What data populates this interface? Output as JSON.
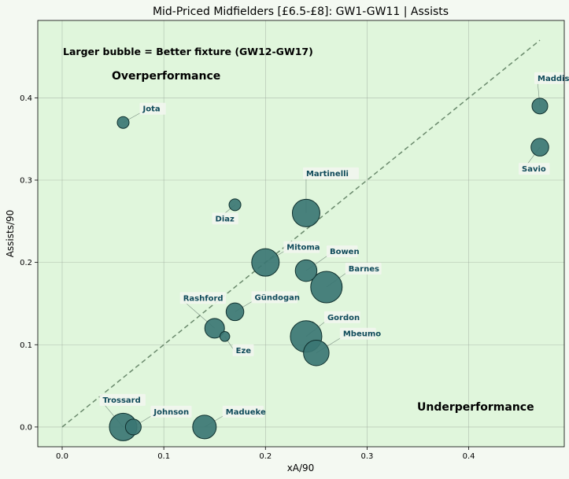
{
  "chart_data": {
    "type": "scatter",
    "title": "Mid-Priced Midfielders [£6.5-£8]: GW1-GW11 | Assists",
    "xlabel": "xA/90",
    "ylabel": "Assists/90",
    "xlim": [
      -0.024,
      0.494
    ],
    "ylim": [
      -0.024,
      0.494
    ],
    "xticks": [
      "0.0",
      "0.1",
      "0.2",
      "0.3",
      "0.4"
    ],
    "yticks": [
      "0.0",
      "0.1",
      "0.2",
      "0.3",
      "0.4"
    ],
    "grid": true,
    "note": "Larger bubble = Better fixture (GW12-GW17)",
    "zone_labels": {
      "over": "Overperformance",
      "under": "Underperformance"
    },
    "reference_line": {
      "from": [
        0,
        0
      ],
      "to": [
        0.47,
        0.47
      ],
      "style": "dashed"
    },
    "colors": {
      "plot_bg": "#e0f6dc",
      "page_bg": "#f4f9f2",
      "bubble": "#3b7673",
      "label": "#0f4a5a",
      "over": "#19e619",
      "under": "#c8204e",
      "note": "#6a6a6a"
    },
    "points": [
      {
        "name": "Maddison",
        "x": 0.47,
        "y": 0.39,
        "fixture": 4
      },
      {
        "name": "Savio",
        "x": 0.47,
        "y": 0.34,
        "fixture": 5
      },
      {
        "name": "Jota",
        "x": 0.06,
        "y": 0.37,
        "fixture": 2
      },
      {
        "name": "Martinelli",
        "x": 0.24,
        "y": 0.26,
        "fixture": 10
      },
      {
        "name": "Diaz",
        "x": 0.17,
        "y": 0.27,
        "fixture": 2
      },
      {
        "name": "Mitoma",
        "x": 0.2,
        "y": 0.2,
        "fixture": 10
      },
      {
        "name": "Bowen",
        "x": 0.24,
        "y": 0.19,
        "fixture": 7
      },
      {
        "name": "Barnes",
        "x": 0.26,
        "y": 0.17,
        "fixture": 12
      },
      {
        "name": "Gündogan",
        "x": 0.17,
        "y": 0.14,
        "fixture": 5
      },
      {
        "name": "Rashford",
        "x": 0.15,
        "y": 0.12,
        "fixture": 6
      },
      {
        "name": "Eze",
        "x": 0.16,
        "y": 0.11,
        "fixture": 1
      },
      {
        "name": "Gordon",
        "x": 0.24,
        "y": 0.11,
        "fixture": 12
      },
      {
        "name": "Mbeumo",
        "x": 0.25,
        "y": 0.09,
        "fixture": 9
      },
      {
        "name": "Trossard",
        "x": 0.06,
        "y": 0.0,
        "fixture": 10
      },
      {
        "name": "Johnson",
        "x": 0.07,
        "y": 0.0,
        "fixture": 4
      },
      {
        "name": "Madueke",
        "x": 0.14,
        "y": 0.0,
        "fixture": 8
      }
    ]
  }
}
